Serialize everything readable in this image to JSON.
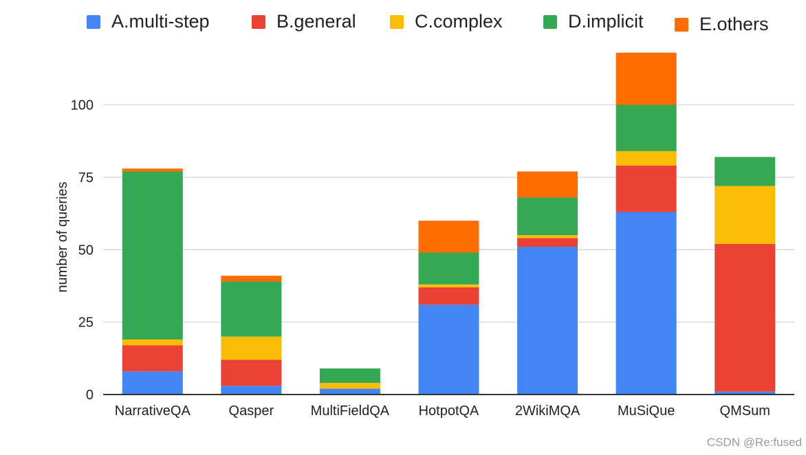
{
  "chart_data": {
    "type": "bar",
    "stacked": true,
    "categories": [
      "NarrativeQA",
      "Qasper",
      "MultiFieldQA",
      "HotpotQA",
      "2WikiMQA",
      "MuSiQue",
      "QMSum"
    ],
    "series": [
      {
        "name": "A.multi-step",
        "color": "#4285f4",
        "values": [
          8,
          3,
          2,
          31,
          51,
          63,
          1
        ]
      },
      {
        "name": "B.general",
        "color": "#ea4335",
        "values": [
          9,
          9,
          0,
          6,
          3,
          16,
          51
        ]
      },
      {
        "name": "C.complex",
        "color": "#fbbc04",
        "values": [
          2,
          8,
          2,
          1,
          1,
          5,
          20
        ]
      },
      {
        "name": "D.implicit",
        "color": "#34a853",
        "values": [
          58,
          19,
          5,
          11,
          13,
          16,
          10
        ]
      },
      {
        "name": "E.others",
        "color": "#ff6d01",
        "values": [
          1,
          2,
          0,
          11,
          9,
          18,
          0
        ]
      }
    ],
    "yticks": [
      "0",
      "25",
      "50",
      "75",
      "100"
    ],
    "ylabel": "number of queries",
    "xlabel": "",
    "title": "",
    "ylim": [
      0,
      120
    ],
    "grid": true,
    "legend_position": "top"
  },
  "watermark": "CSDN @Re:fused"
}
